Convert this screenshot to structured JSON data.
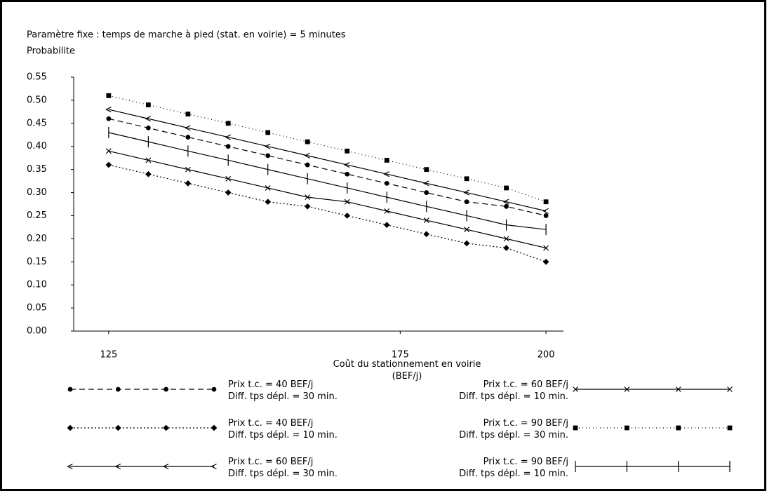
{
  "chart_data": {
    "type": "line",
    "title": "Paramètre fixe : temps de marche à pied (stat. en voirie) = 5 minutes",
    "y_label": "Probabilite",
    "x_label": "Coût du stationnement en voirie\n(BEF/j)",
    "x": [
      125,
      131.8,
      138.6,
      145.5,
      152.3,
      159.1,
      165.9,
      172.7,
      179.5,
      186.4,
      193.2,
      200
    ],
    "xlim": [
      119,
      203
    ],
    "xticks": [
      125,
      175,
      200
    ],
    "ylim": [
      0,
      0.55
    ],
    "yticks": [
      {
        "value": 0,
        "label": "0.00"
      },
      0.05,
      {
        "value": 0.1,
        "label": "0.10"
      },
      0.15,
      {
        "value": 0.2,
        "label": "0.20"
      },
      0.25,
      {
        "value": 0.3,
        "label": "0.30"
      },
      0.35,
      {
        "value": 0.4,
        "label": "0.40"
      },
      0.45,
      {
        "value": 0.5,
        "label": "0.50"
      },
      0.55
    ],
    "series": [
      {
        "name": "Prix t.c. = 40 BEF/j\nDiff. tps dépl. = 30 min.",
        "color": "#000000",
        "marker": "circle",
        "dash": "8 5",
        "values": [
          0.46,
          0.44,
          0.42,
          0.4,
          0.38,
          0.36,
          0.34,
          0.32,
          0.3,
          0.28,
          0.27,
          0.25
        ]
      },
      {
        "name": "Prix t.c. = 60 BEF/j\nDiff. tps dépl. = 10 min.",
        "color": "#000000",
        "marker": "cross",
        "dash": "none",
        "values": [
          0.39,
          0.37,
          0.35,
          0.33,
          0.31,
          0.29,
          0.28,
          0.26,
          0.24,
          0.22,
          0.2,
          0.18
        ]
      },
      {
        "name": "Prix t.c. = 40 BEF/j\nDiff. tps dépl. = 10 min.",
        "color": "#000000",
        "marker": "diamond",
        "dash": "2 3",
        "values": [
          0.36,
          0.34,
          0.32,
          0.3,
          0.28,
          0.27,
          0.25,
          0.23,
          0.21,
          0.19,
          0.18,
          0.15
        ]
      },
      {
        "name": "Prix t.c. = 90 BEF/j\nDiff. tps dépl. = 30 min.",
        "color": "#000000",
        "marker": "square",
        "dash": "1 4",
        "values": [
          0.51,
          0.49,
          0.47,
          0.45,
          0.43,
          0.41,
          0.39,
          0.37,
          0.35,
          0.33,
          0.31,
          0.28
        ]
      },
      {
        "name": "Prix t.c. = 60 BEF/j\nDiff. tps dépl. = 30 min.",
        "color": "#000000",
        "marker": "arrow",
        "dash": "none",
        "values": [
          0.48,
          0.46,
          0.44,
          0.42,
          0.4,
          0.38,
          0.36,
          0.34,
          0.32,
          0.3,
          0.28,
          0.26
        ]
      },
      {
        "name": "Prix t.c. = 90 BEF/j\nDiff. tps dépl. = 10 min.",
        "color": "#000000",
        "marker": "bar",
        "dash": "none",
        "values": [
          0.43,
          0.41,
          0.39,
          0.37,
          0.35,
          0.33,
          0.31,
          0.29,
          0.27,
          0.25,
          0.23,
          0.22
        ]
      }
    ]
  }
}
